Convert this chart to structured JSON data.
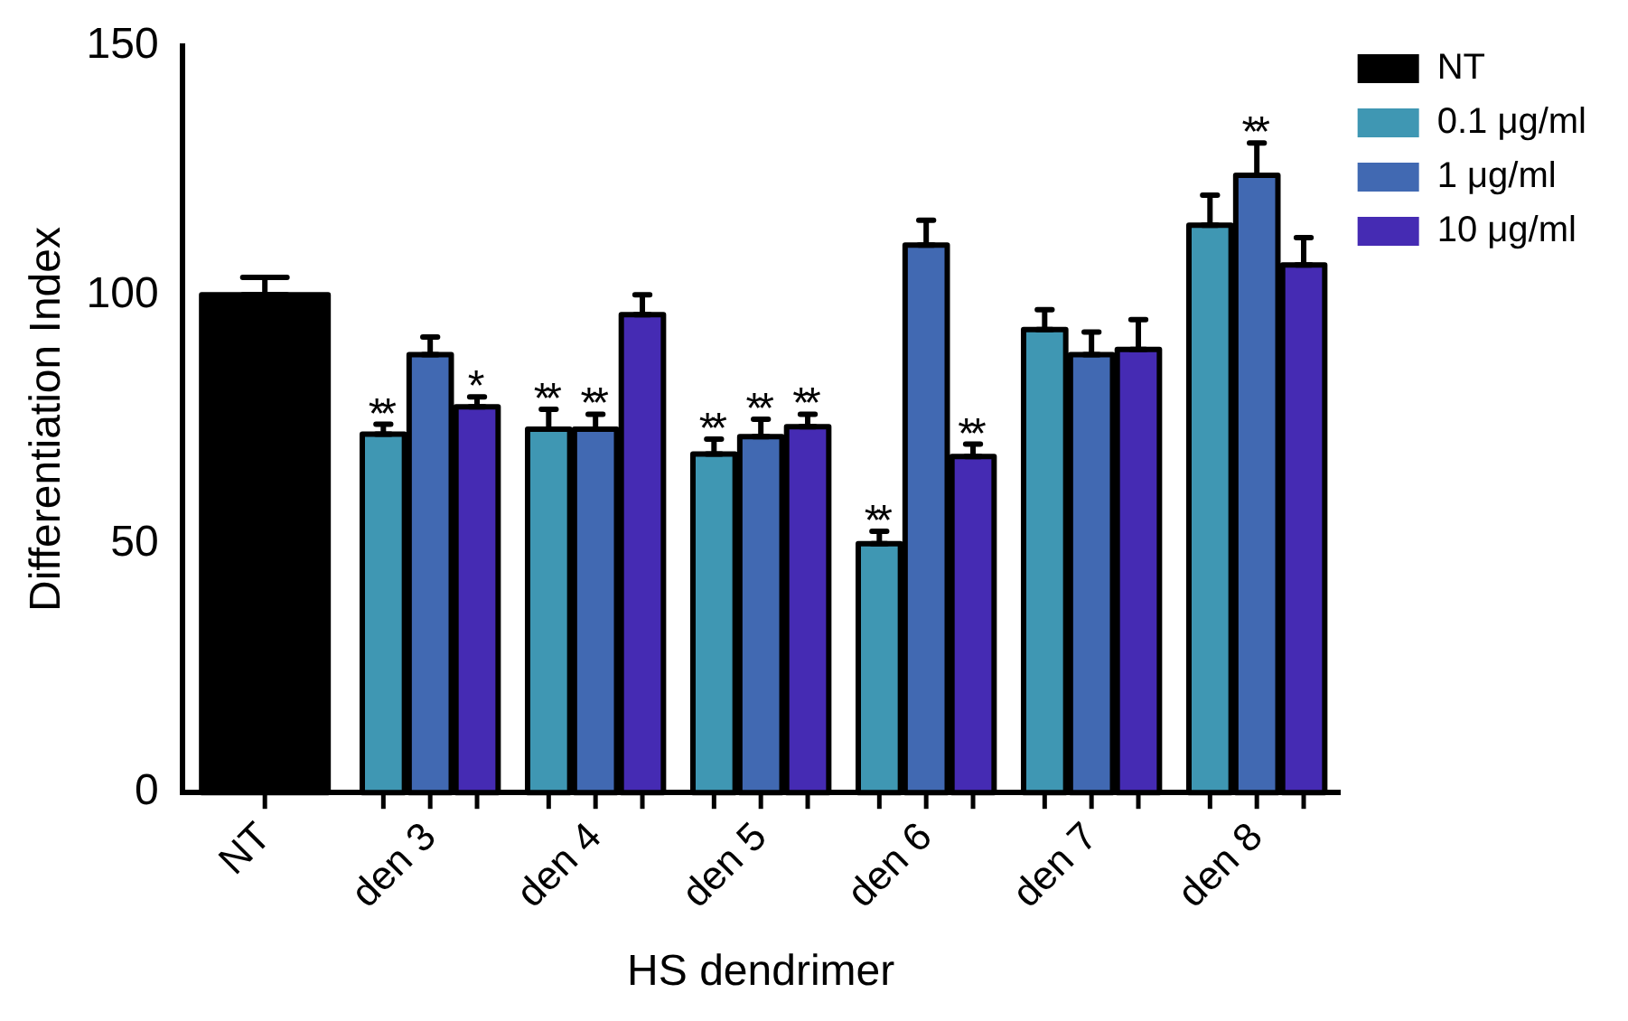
{
  "chart_data": {
    "type": "bar",
    "xlabel": "HS dendrimer",
    "ylabel": "Differentiation Index",
    "categories": [
      "NT",
      "den 3",
      "den 4",
      "den 5",
      "den 6",
      "den 7",
      "den 8"
    ],
    "series": [
      {
        "name": "NT",
        "color": "#000000",
        "values": [
          100,
          null,
          null,
          null,
          null,
          null,
          null
        ],
        "errors": [
          [
            100,
            103.5
          ],
          null,
          null,
          null,
          null,
          null,
          null
        ]
      },
      {
        "name": "0.1 μg/ml",
        "color": "#3f97b3",
        "values": [
          null,
          72,
          73,
          68,
          50,
          93,
          114
        ],
        "errors": [
          null,
          [
            72,
            74
          ],
          [
            73,
            77
          ],
          [
            68,
            71
          ],
          [
            50,
            52.5
          ],
          [
            93,
            97
          ],
          [
            114,
            120
          ]
        ],
        "value_labels": [
          null,
          "**",
          "**",
          "**",
          "**",
          null,
          null
        ]
      },
      {
        "name": "1 μg/ml",
        "color": "#4169b2",
        "values": [
          null,
          88,
          73,
          71.5,
          110,
          88,
          124
        ],
        "errors": [
          null,
          [
            88,
            91.5
          ],
          [
            73,
            76
          ],
          [
            71.5,
            75
          ],
          [
            110,
            115
          ],
          [
            88,
            92.5
          ],
          [
            124,
            130.5
          ]
        ],
        "value_labels": [
          null,
          null,
          "**",
          "**",
          null,
          null,
          "**"
        ]
      },
      {
        "name": "10 μg/ml",
        "color": "#452bb3",
        "values": [
          null,
          77.5,
          96,
          73.5,
          67.5,
          89,
          106
        ],
        "errors": [
          null,
          [
            77.5,
            79.5
          ],
          [
            96,
            100
          ],
          [
            73.5,
            76
          ],
          [
            67.5,
            70
          ],
          [
            89,
            95
          ],
          [
            106,
            111.5
          ]
        ],
        "value_labels": [
          null,
          "*",
          null,
          "**",
          "**",
          null,
          null
        ]
      }
    ],
    "ylim": [
      0,
      150
    ],
    "yticks": [
      0,
      50,
      100,
      150
    ],
    "grid": false,
    "legend": "top right"
  }
}
